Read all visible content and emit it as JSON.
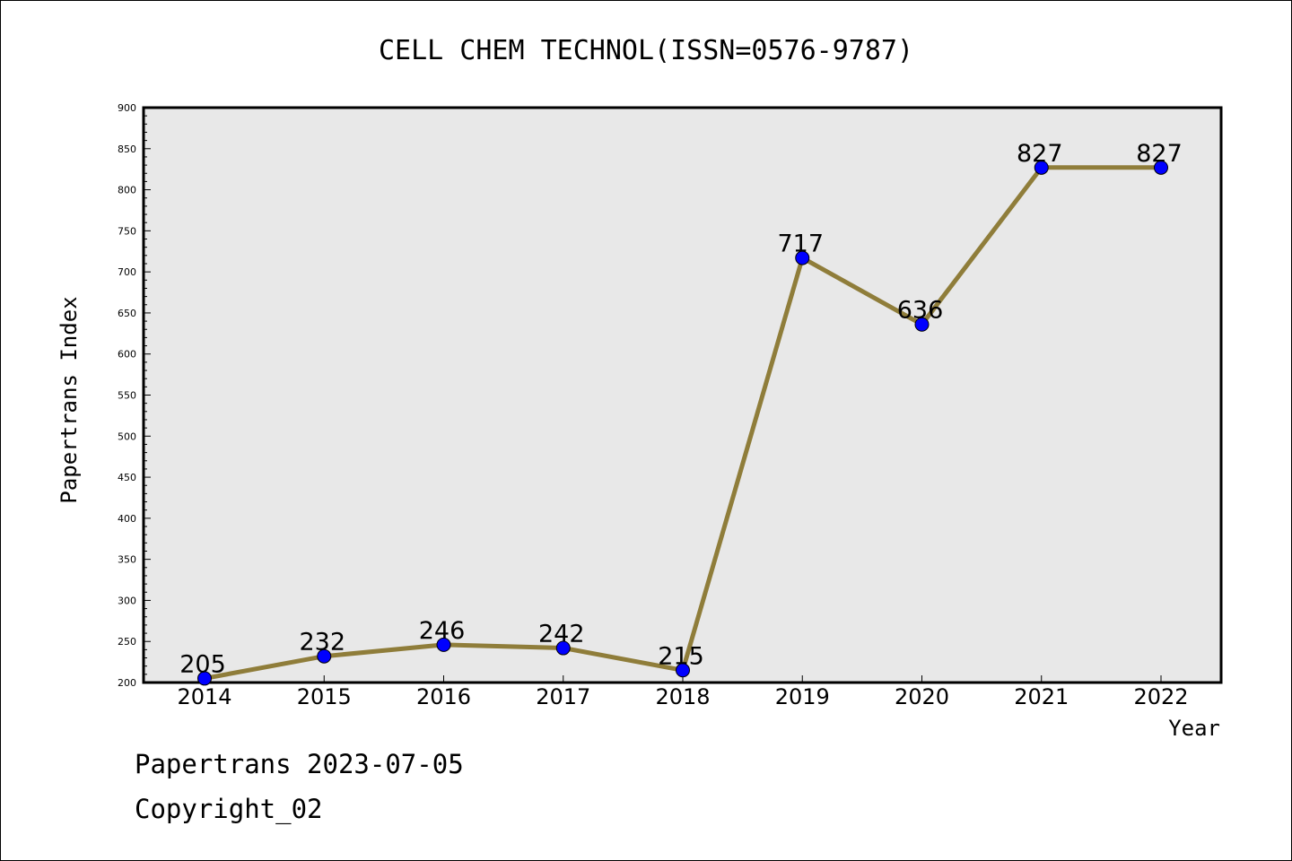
{
  "chart_data": {
    "type": "line",
    "title": "CELL CHEM TECHNOL(ISSN=0576-9787)",
    "xlabel": "Year",
    "ylabel": "Papertrans Index",
    "categories": [
      "2014",
      "2015",
      "2016",
      "2017",
      "2018",
      "2019",
      "2020",
      "2021",
      "2022"
    ],
    "series": [
      {
        "values": [
          205,
          232,
          246,
          242,
          215,
          717,
          636,
          827,
          827
        ],
        "data_labels": [
          "205",
          "232",
          "246",
          "242",
          "215",
          "717",
          "636",
          "827",
          "827"
        ],
        "line_color": "#8f7d3a",
        "marker_color": "#0000ff"
      }
    ],
    "ylim": [
      200,
      900
    ],
    "yticks": [
      "200",
      "250",
      "300",
      "350",
      "400",
      "450",
      "500",
      "550",
      "600",
      "650",
      "700",
      "750",
      "800",
      "850",
      "900"
    ],
    "grid": false,
    "legend": "none",
    "plot_background": "#e8e8e8"
  },
  "footer": {
    "line1": "Papertrans 2023-07-05",
    "line2": "Copyright_02"
  }
}
